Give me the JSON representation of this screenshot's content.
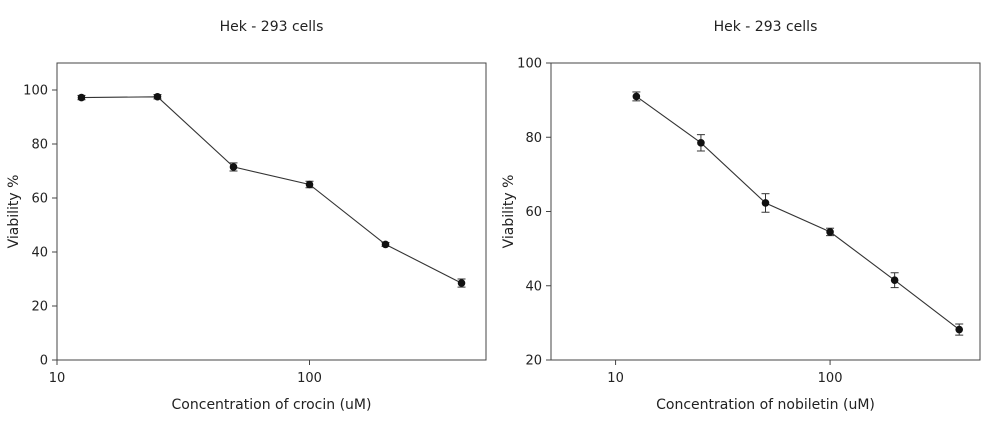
{
  "chart_data": [
    {
      "type": "line",
      "title": "Hek - 293 cells",
      "xlabel": "Concentration of crocin (uM)",
      "ylabel": "Viability %",
      "xscale": "log",
      "xlim": [
        10,
        500
      ],
      "ylim": [
        0,
        110
      ],
      "xticks": [
        {
          "value": 10,
          "label": "10"
        },
        {
          "value": 100,
          "label": "100"
        }
      ],
      "yticks": [
        {
          "value": 0,
          "label": "0"
        },
        {
          "value": 20,
          "label": "20"
        },
        {
          "value": 40,
          "label": "40"
        },
        {
          "value": 60,
          "label": "60"
        },
        {
          "value": 80,
          "label": "80"
        },
        {
          "value": 100,
          "label": "100"
        }
      ],
      "grid": false,
      "series": [
        {
          "x": [
            12.5,
            25,
            50,
            100,
            200,
            400
          ],
          "y": [
            97.2,
            97.5,
            71.5,
            65.0,
            42.8,
            28.5
          ],
          "err": [
            0.8,
            0.8,
            1.5,
            1.2,
            0.7,
            1.5
          ]
        }
      ]
    },
    {
      "type": "line",
      "title": "Hek - 293 cells",
      "xlabel": "Concentration of nobiletin (uM)",
      "ylabel": "Viability %",
      "xscale": "log",
      "xlim": [
        5,
        500
      ],
      "ylim": [
        20,
        100
      ],
      "xticks": [
        {
          "value": 10,
          "label": "10"
        },
        {
          "value": 100,
          "label": "100"
        }
      ],
      "yticks": [
        {
          "value": 20,
          "label": "20"
        },
        {
          "value": 40,
          "label": "40"
        },
        {
          "value": 60,
          "label": "60"
        },
        {
          "value": 80,
          "label": "80"
        },
        {
          "value": 100,
          "label": "100"
        }
      ],
      "grid": false,
      "series": [
        {
          "x": [
            12.5,
            25,
            50,
            100,
            200,
            400
          ],
          "y": [
            91.0,
            78.5,
            62.3,
            54.5,
            41.5,
            28.2
          ],
          "err": [
            1.2,
            2.2,
            2.5,
            1.0,
            2.0,
            1.5
          ]
        }
      ]
    }
  ]
}
